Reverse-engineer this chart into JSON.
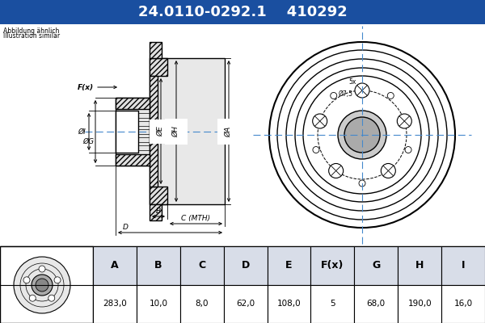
{
  "title_part": "24.0110-0292.1",
  "title_code": "410292",
  "title_bg": "#1a4fa0",
  "title_fg": "#ffffff",
  "abbildung_line1": "Abbildung ähnlich",
  "abbildung_line2": "Illustration similar",
  "table_headers": [
    "A",
    "B",
    "C",
    "D",
    "E",
    "F(x)",
    "G",
    "H",
    "I"
  ],
  "table_values": [
    "283,0",
    "10,0",
    "8,0",
    "62,0",
    "108,0",
    "5",
    "68,0",
    "190,0",
    "16,0"
  ],
  "bg_color": "#ffffff",
  "drawing_bg": "#ffffff",
  "table_header_bg": "#d8dde8",
  "table_value_bg": "#ffffff",
  "table_border": "#888888",
  "hatch_color": "#555555",
  "line_color": "#000000",
  "dim_color": "#000000",
  "center_line_color": "#4488cc"
}
